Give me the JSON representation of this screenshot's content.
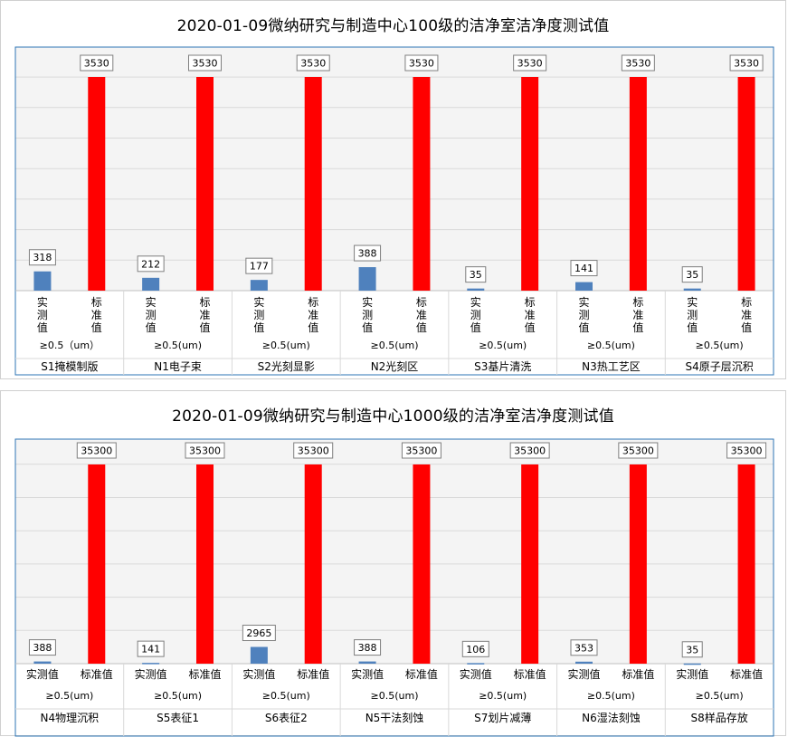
{
  "chart_data": [
    {
      "type": "bar",
      "title": "2020-01-09微纳研究与制造中心100级的洁净室洁净度测试值",
      "series_labels": [
        "实测值",
        "标准值"
      ],
      "particle_size_labels": [
        "≥0.5（um）",
        "≥0.5(um)",
        "≥0.5(um)",
        "≥0.5(um)",
        "≥0.5(um)",
        "≥0.5(um)",
        "≥0.5(um)"
      ],
      "categories": [
        "S1掩模制版",
        "N1电子束",
        "S2光刻显影",
        "N2光刻区",
        "S3基片清洗",
        "N3热工艺区",
        "S4原子层沉积"
      ],
      "series": [
        {
          "values": [
            318,
            212,
            177,
            388,
            35,
            141,
            35
          ],
          "color": "#4f81bd"
        },
        {
          "values": [
            3530,
            3530,
            3530,
            3530,
            3530,
            3530,
            3530
          ],
          "color": "#ff0000"
        }
      ],
      "ylim": [
        0,
        3530
      ],
      "grid": true,
      "series_label_orientation": "vertical"
    },
    {
      "type": "bar",
      "title": "2020-01-09微纳研究与制造中心1000级的洁净室洁净度测试值",
      "series_labels": [
        "实测值",
        "标准值"
      ],
      "particle_size_labels": [
        "≥0.5(um)",
        "≥0.5(um)",
        "≥0.5(um)",
        "≥0.5(um)",
        "≥0.5(um)",
        "≥0.5(um)",
        "≥0.5(um)"
      ],
      "categories": [
        "N4物理沉积",
        "S5表征1",
        "S6表征2",
        "N5干法刻蚀",
        "S7划片减薄",
        "N6湿法刻蚀",
        "S8样品存放"
      ],
      "series": [
        {
          "values": [
            388,
            141,
            2965,
            388,
            106,
            353,
            35
          ],
          "color": "#4f81bd"
        },
        {
          "values": [
            35300,
            35300,
            35300,
            35300,
            35300,
            35300,
            35300
          ],
          "color": "#ff0000"
        }
      ],
      "ylim": [
        0,
        35300
      ],
      "grid": true,
      "series_label_orientation": "horizontal"
    }
  ]
}
